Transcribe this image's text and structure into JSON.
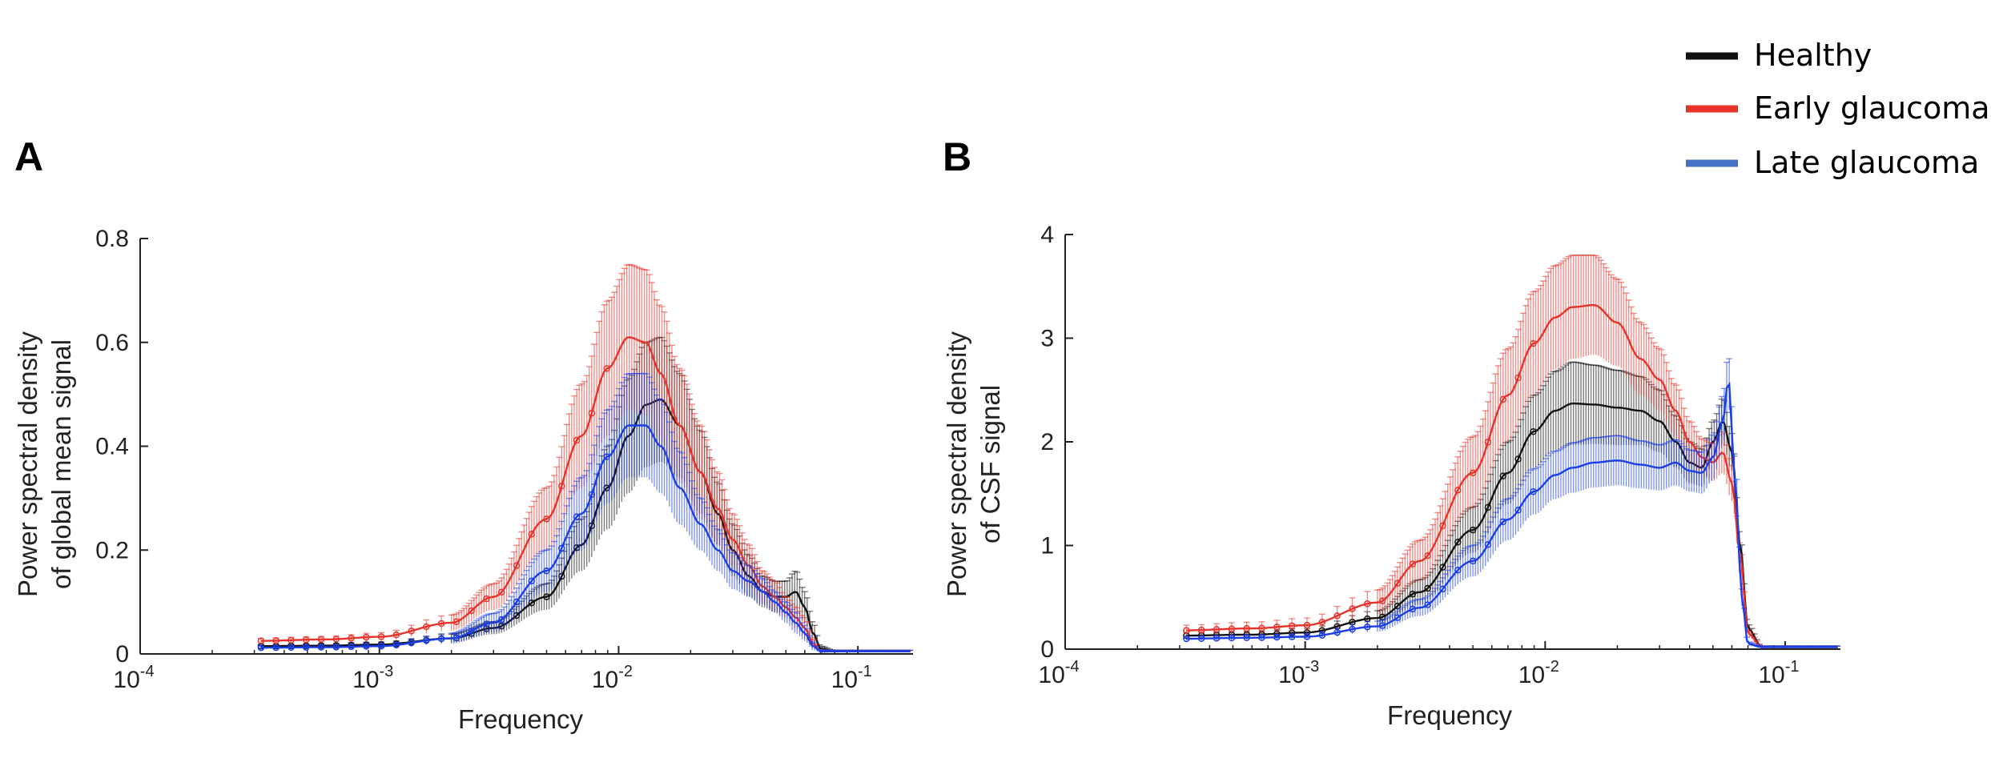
{
  "legend": {
    "entries": [
      {
        "label": "Healthy",
        "color": "#111111"
      },
      {
        "label": "Early glaucoma",
        "color": "#e8332a"
      },
      {
        "label": "Late glaucoma",
        "color": "#4472c4"
      }
    ]
  },
  "chart_data": [
    {
      "panel": "A",
      "type": "line",
      "title": "",
      "xlabel": "Frequency",
      "ylabel": [
        "Power spectral density",
        "of global mean signal"
      ],
      "xscale": "log",
      "xlim": [
        0.0001,
        0.17
      ],
      "ylim": [
        0,
        0.8
      ],
      "xticks": [
        {
          "base": "10",
          "exp": "-4"
        },
        {
          "base": "10",
          "exp": "-3"
        },
        {
          "base": "10",
          "exp": "-2"
        },
        {
          "base": "10",
          "exp": "-1"
        }
      ],
      "yticks": [
        "0",
        "0.2",
        "0.4",
        "0.6",
        "0.8"
      ],
      "series": [
        {
          "name": "Healthy",
          "color": "#111111",
          "x": [
            0.0003,
            0.0006,
            0.001,
            0.002,
            0.003,
            0.005,
            0.007,
            0.009,
            0.011,
            0.013,
            0.015,
            0.018,
            0.022,
            0.026,
            0.03,
            0.035,
            0.04,
            0.045,
            0.05,
            0.055,
            0.06,
            0.065,
            0.07,
            0.08,
            0.1,
            0.13,
            0.17
          ],
          "mean": [
            0.015,
            0.016,
            0.018,
            0.03,
            0.05,
            0.11,
            0.21,
            0.32,
            0.42,
            0.48,
            0.49,
            0.44,
            0.35,
            0.27,
            0.2,
            0.15,
            0.12,
            0.11,
            0.11,
            0.12,
            0.09,
            0.04,
            0.01,
            0.005,
            0.005,
            0.005,
            0.005
          ],
          "err": [
            0.003,
            0.004,
            0.005,
            0.008,
            0.012,
            0.025,
            0.05,
            0.08,
            0.11,
            0.12,
            0.12,
            0.1,
            0.08,
            0.06,
            0.05,
            0.04,
            0.03,
            0.03,
            0.03,
            0.04,
            0.03,
            0.02,
            0.005,
            0.002,
            0.002,
            0.002,
            0.002
          ]
        },
        {
          "name": "Early glaucoma",
          "color": "#e8332a",
          "x": [
            0.0003,
            0.0006,
            0.001,
            0.002,
            0.003,
            0.005,
            0.007,
            0.009,
            0.011,
            0.013,
            0.015,
            0.018,
            0.022,
            0.026,
            0.03,
            0.035,
            0.04,
            0.045,
            0.05,
            0.055,
            0.06,
            0.065,
            0.07,
            0.08,
            0.1,
            0.13,
            0.17
          ],
          "mean": [
            0.025,
            0.028,
            0.033,
            0.06,
            0.11,
            0.26,
            0.42,
            0.55,
            0.61,
            0.6,
            0.54,
            0.44,
            0.35,
            0.28,
            0.22,
            0.17,
            0.13,
            0.11,
            0.09,
            0.07,
            0.05,
            0.02,
            0.005,
            0.005,
            0.005,
            0.005,
            0.005
          ],
          "err": [
            0.005,
            0.006,
            0.008,
            0.015,
            0.025,
            0.06,
            0.1,
            0.13,
            0.14,
            0.14,
            0.13,
            0.11,
            0.09,
            0.07,
            0.05,
            0.04,
            0.03,
            0.03,
            0.02,
            0.02,
            0.02,
            0.01,
            0.003,
            0.002,
            0.002,
            0.002,
            0.002
          ]
        },
        {
          "name": "Late glaucoma",
          "color": "#1a3ee8",
          "x": [
            0.0003,
            0.0006,
            0.001,
            0.002,
            0.003,
            0.005,
            0.007,
            0.009,
            0.011,
            0.013,
            0.015,
            0.018,
            0.022,
            0.026,
            0.03,
            0.035,
            0.04,
            0.045,
            0.05,
            0.055,
            0.06,
            0.065,
            0.07,
            0.08,
            0.1,
            0.13,
            0.17
          ],
          "mean": [
            0.012,
            0.013,
            0.015,
            0.03,
            0.06,
            0.16,
            0.27,
            0.38,
            0.44,
            0.44,
            0.4,
            0.32,
            0.25,
            0.2,
            0.16,
            0.14,
            0.12,
            0.1,
            0.08,
            0.06,
            0.04,
            0.015,
            0.005,
            0.005,
            0.005,
            0.005,
            0.005
          ],
          "err": [
            0.003,
            0.004,
            0.005,
            0.01,
            0.018,
            0.04,
            0.07,
            0.09,
            0.1,
            0.1,
            0.09,
            0.07,
            0.05,
            0.04,
            0.035,
            0.03,
            0.025,
            0.02,
            0.02,
            0.02,
            0.015,
            0.008,
            0.003,
            0.002,
            0.002,
            0.002,
            0.002
          ]
        }
      ]
    },
    {
      "panel": "B",
      "type": "line",
      "title": "",
      "xlabel": "Frequency",
      "ylabel": [
        "Power spectral density",
        "of CSF signal"
      ],
      "xscale": "log",
      "xlim": [
        0.0001,
        0.17
      ],
      "ylim": [
        0,
        4
      ],
      "xticks": [
        {
          "base": "10",
          "exp": "-4"
        },
        {
          "base": "10",
          "exp": "-3"
        },
        {
          "base": "10",
          "exp": "-2"
        },
        {
          "base": "10",
          "exp": "-1"
        }
      ],
      "yticks": [
        "0",
        "1",
        "2",
        "3",
        "4"
      ],
      "series": [
        {
          "name": "Healthy",
          "color": "#111111",
          "x": [
            0.0003,
            0.0006,
            0.001,
            0.002,
            0.003,
            0.005,
            0.007,
            0.009,
            0.011,
            0.013,
            0.016,
            0.02,
            0.025,
            0.03,
            0.035,
            0.04,
            0.045,
            0.05,
            0.055,
            0.06,
            0.065,
            0.07,
            0.08,
            0.1,
            0.13,
            0.17
          ],
          "mean": [
            0.13,
            0.14,
            0.16,
            0.3,
            0.55,
            1.15,
            1.7,
            2.1,
            2.3,
            2.37,
            2.36,
            2.33,
            2.3,
            2.2,
            2.0,
            1.8,
            1.75,
            2.0,
            2.2,
            1.9,
            1.0,
            0.2,
            0.02,
            0.02,
            0.02,
            0.02
          ],
          "err": [
            0.03,
            0.03,
            0.04,
            0.07,
            0.12,
            0.22,
            0.3,
            0.35,
            0.38,
            0.4,
            0.38,
            0.36,
            0.33,
            0.3,
            0.25,
            0.2,
            0.18,
            0.2,
            0.22,
            0.18,
            0.1,
            0.04,
            0.01,
            0.01,
            0.01,
            0.01
          ]
        },
        {
          "name": "Early glaucoma",
          "color": "#e8332a",
          "x": [
            0.0003,
            0.0006,
            0.001,
            0.002,
            0.003,
            0.005,
            0.007,
            0.009,
            0.011,
            0.013,
            0.016,
            0.02,
            0.025,
            0.03,
            0.035,
            0.04,
            0.045,
            0.05,
            0.055,
            0.06,
            0.065,
            0.07,
            0.08,
            0.1,
            0.13,
            0.17
          ],
          "mean": [
            0.18,
            0.2,
            0.23,
            0.45,
            0.85,
            1.7,
            2.45,
            2.95,
            3.2,
            3.3,
            3.32,
            3.15,
            2.8,
            2.6,
            2.3,
            2.0,
            1.85,
            1.8,
            1.9,
            1.6,
            0.9,
            0.15,
            0.02,
            0.02,
            0.02,
            0.02
          ],
          "err": [
            0.05,
            0.06,
            0.07,
            0.12,
            0.2,
            0.35,
            0.45,
            0.5,
            0.5,
            0.5,
            0.48,
            0.42,
            0.35,
            0.3,
            0.25,
            0.2,
            0.18,
            0.18,
            0.2,
            0.17,
            0.1,
            0.03,
            0.01,
            0.01,
            0.01,
            0.01
          ]
        },
        {
          "name": "Late glaucoma",
          "color": "#1a3ee8",
          "x": [
            0.0003,
            0.0006,
            0.001,
            0.002,
            0.003,
            0.005,
            0.007,
            0.009,
            0.011,
            0.013,
            0.016,
            0.02,
            0.025,
            0.03,
            0.035,
            0.04,
            0.045,
            0.05,
            0.055,
            0.058,
            0.062,
            0.066,
            0.07,
            0.08,
            0.1,
            0.13,
            0.17
          ],
          "mean": [
            0.1,
            0.11,
            0.12,
            0.22,
            0.4,
            0.85,
            1.25,
            1.52,
            1.68,
            1.75,
            1.8,
            1.82,
            1.78,
            1.75,
            1.8,
            1.72,
            1.7,
            1.85,
            2.2,
            2.6,
            1.6,
            0.5,
            0.05,
            0.02,
            0.02,
            0.02,
            0.02
          ],
          "err": [
            0.02,
            0.03,
            0.03,
            0.05,
            0.08,
            0.15,
            0.2,
            0.22,
            0.23,
            0.24,
            0.24,
            0.24,
            0.23,
            0.22,
            0.22,
            0.2,
            0.2,
            0.22,
            0.25,
            0.25,
            0.2,
            0.08,
            0.02,
            0.01,
            0.01,
            0.01,
            0.01
          ]
        }
      ]
    }
  ]
}
